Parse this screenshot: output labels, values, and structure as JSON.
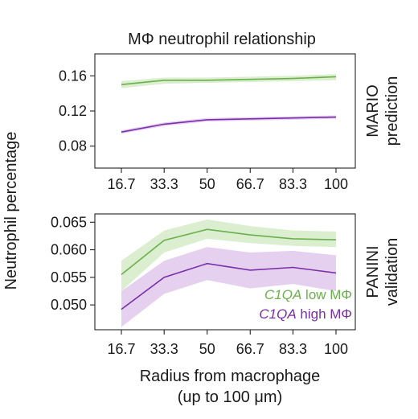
{
  "page": {
    "title": "MΦ neutrophil relationship",
    "ylabel": "Neutrophil percentage",
    "xlabel_line1": "Radius from macrophage",
    "xlabel_line2": "(up to 100 μm)"
  },
  "colors": {
    "low": "#6ab04c",
    "low_band": "#cfe8bf",
    "high": "#7b2fa8",
    "high_band": "#dcc2ea",
    "axis": "#222222"
  },
  "chart_data": [
    {
      "type": "line",
      "panel": "MARIO prediction",
      "side_label_lines": [
        "MARIO",
        "prediction"
      ],
      "categories": [
        "16.7",
        "33.3",
        "50",
        "66.7",
        "83.3",
        "100"
      ],
      "x": [
        16.7,
        33.3,
        50,
        66.7,
        83.3,
        100
      ],
      "yticks": [
        "0.16",
        "0.12",
        "0.08"
      ],
      "ytick_values": [
        0.16,
        0.12,
        0.08
      ],
      "ylim": [
        0.055,
        0.185
      ],
      "grid": false,
      "series": [
        {
          "key": "low",
          "values": [
            0.15,
            0.155,
            0.155,
            0.156,
            0.157,
            0.159
          ],
          "lower": [
            0.146,
            0.151,
            0.152,
            0.153,
            0.154,
            0.155
          ],
          "upper": [
            0.154,
            0.158,
            0.158,
            0.159,
            0.16,
            0.162
          ]
        },
        {
          "key": "high",
          "values": [
            0.096,
            0.105,
            0.11,
            0.111,
            0.112,
            0.113
          ],
          "lower": [
            0.094,
            0.103,
            0.108,
            0.109,
            0.11,
            0.111
          ],
          "upper": [
            0.098,
            0.107,
            0.112,
            0.113,
            0.114,
            0.115
          ]
        }
      ]
    },
    {
      "type": "line",
      "panel": "PANINI validation",
      "side_label_lines": [
        "PANINI",
        "validation"
      ],
      "categories": [
        "16.7",
        "33.3",
        "50",
        "66.7",
        "83.3",
        "100"
      ],
      "x": [
        16.7,
        33.3,
        50,
        66.7,
        83.3,
        100
      ],
      "yticks": [
        "0.065",
        "0.060",
        "0.055",
        "0.050"
      ],
      "ytick_values": [
        0.065,
        0.06,
        0.055,
        0.05
      ],
      "ylim": [
        0.0455,
        0.0665
      ],
      "grid": false,
      "legend_position": "bottom-right",
      "series": [
        {
          "key": "low",
          "name_gene": "C1QA",
          "name_rest": " low MΦ",
          "values": [
            0.0555,
            0.0617,
            0.0637,
            0.0627,
            0.062,
            0.0618
          ],
          "lower": [
            0.0525,
            0.0595,
            0.062,
            0.0612,
            0.0607,
            0.0605
          ],
          "upper": [
            0.058,
            0.0635,
            0.0655,
            0.0643,
            0.0635,
            0.0633
          ]
        },
        {
          "key": "high",
          "name_gene": "C1QA",
          "name_rest": " high MΦ",
          "values": [
            0.0492,
            0.055,
            0.0575,
            0.0563,
            0.0568,
            0.0558
          ],
          "lower": [
            0.046,
            0.052,
            0.0545,
            0.053,
            0.0538,
            0.0525
          ],
          "upper": [
            0.0525,
            0.058,
            0.0605,
            0.0595,
            0.0598,
            0.059
          ]
        }
      ]
    }
  ]
}
